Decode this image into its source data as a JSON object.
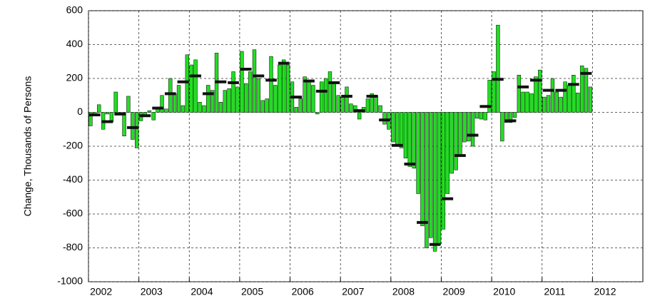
{
  "chart_data": {
    "type": "bar",
    "y_label": "Change, Thousands of Persons",
    "xlim": [
      2002,
      2013
    ],
    "xticks": [
      2002,
      2003,
      2004,
      2005,
      2006,
      2007,
      2008,
      2009,
      2010,
      2011,
      2012
    ],
    "ylim": [
      -1000,
      600
    ],
    "yticks": [
      600,
      400,
      200,
      0,
      -200,
      -400,
      -600,
      -800,
      -1000
    ],
    "grid": true,
    "series": [
      {
        "kind": "bar",
        "color": "#22dd22",
        "x": [
          2002,
          2002.083,
          2002.167,
          2002.25,
          2002.333,
          2002.417,
          2002.5,
          2002.583,
          2002.667,
          2002.75,
          2002.833,
          2002.917,
          2003,
          2003.083,
          2003.167,
          2003.25,
          2003.333,
          2003.417,
          2003.5,
          2003.583,
          2003.667,
          2003.75,
          2003.833,
          2003.917,
          2004,
          2004.083,
          2004.167,
          2004.25,
          2004.333,
          2004.417,
          2004.5,
          2004.583,
          2004.667,
          2004.75,
          2004.833,
          2004.917,
          2005,
          2005.083,
          2005.167,
          2005.25,
          2005.333,
          2005.417,
          2005.5,
          2005.583,
          2005.667,
          2005.75,
          2005.833,
          2005.917,
          2006,
          2006.083,
          2006.167,
          2006.25,
          2006.333,
          2006.417,
          2006.5,
          2006.583,
          2006.667,
          2006.75,
          2006.833,
          2006.917,
          2007,
          2007.083,
          2007.167,
          2007.25,
          2007.333,
          2007.417,
          2007.5,
          2007.583,
          2007.667,
          2007.75,
          2007.833,
          2007.917,
          2008,
          2008.083,
          2008.167,
          2008.25,
          2008.333,
          2008.417,
          2008.5,
          2008.583,
          2008.667,
          2008.75,
          2008.833,
          2008.917,
          2009,
          2009.083,
          2009.167,
          2009.25,
          2009.333,
          2009.417,
          2009.5,
          2009.583,
          2009.667,
          2009.75,
          2009.833,
          2009.917,
          2010,
          2010.083,
          2010.167,
          2010.25,
          2010.333,
          2010.417,
          2010.5,
          2010.583,
          2010.667,
          2010.75,
          2010.833,
          2010.917,
          2011,
          2011.083,
          2011.167,
          2011.25,
          2011.333,
          2011.417,
          2011.5,
          2011.583,
          2011.667,
          2011.75,
          2011.833,
          2011.917
        ],
        "values": [
          -80,
          -15,
          45,
          -100,
          -10,
          -55,
          120,
          -10,
          -140,
          95,
          -160,
          -210,
          -50,
          -20,
          10,
          -45,
          20,
          100,
          20,
          200,
          110,
          160,
          40,
          340,
          280,
          310,
          60,
          40,
          160,
          130,
          350,
          60,
          130,
          140,
          240,
          150,
          360,
          170,
          240,
          370,
          200,
          70,
          80,
          330,
          160,
          280,
          310,
          280,
          180,
          30,
          80,
          210,
          190,
          160,
          -10,
          180,
          200,
          240,
          180,
          100,
          90,
          150,
          50,
          40,
          -40,
          30,
          80,
          110,
          100,
          40,
          -70,
          -100,
          -175,
          -200,
          -210,
          -270,
          -320,
          -330,
          -480,
          -670,
          -800,
          -740,
          -820,
          -780,
          -690,
          -480,
          -360,
          -340,
          -250,
          -175,
          -170,
          -200,
          -35,
          -40,
          -45,
          190,
          240,
          515,
          -170,
          -60,
          -60,
          -30,
          220,
          120,
          120,
          110,
          210,
          250,
          90,
          100,
          200,
          120,
          90,
          180,
          160,
          220,
          115,
          275,
          260,
          150
        ]
      },
      {
        "kind": "dash",
        "color": "#111111",
        "x": [
          2002,
          2002.25,
          2002.5,
          2002.75,
          2003,
          2003.25,
          2003.5,
          2003.75,
          2004,
          2004.25,
          2004.5,
          2004.75,
          2005,
          2005.25,
          2005.5,
          2005.75,
          2006,
          2006.25,
          2006.5,
          2006.75,
          2007,
          2007.25,
          2007.5,
          2007.75,
          2008,
          2008.25,
          2008.5,
          2008.75,
          2009,
          2009.25,
          2009.5,
          2009.75,
          2010,
          2010.25,
          2010.5,
          2010.75,
          2011,
          2011.25,
          2011.5,
          2011.75
        ],
        "values": [
          -15,
          -55,
          -10,
          -90,
          -20,
          25,
          110,
          180,
          215,
          110,
          180,
          175,
          255,
          215,
          190,
          290,
          90,
          185,
          125,
          175,
          95,
          10,
          95,
          -45,
          -195,
          -305,
          -650,
          -780,
          -510,
          -255,
          -135,
          35,
          195,
          -50,
          150,
          190,
          130,
          130,
          165,
          230
        ]
      }
    ]
  }
}
